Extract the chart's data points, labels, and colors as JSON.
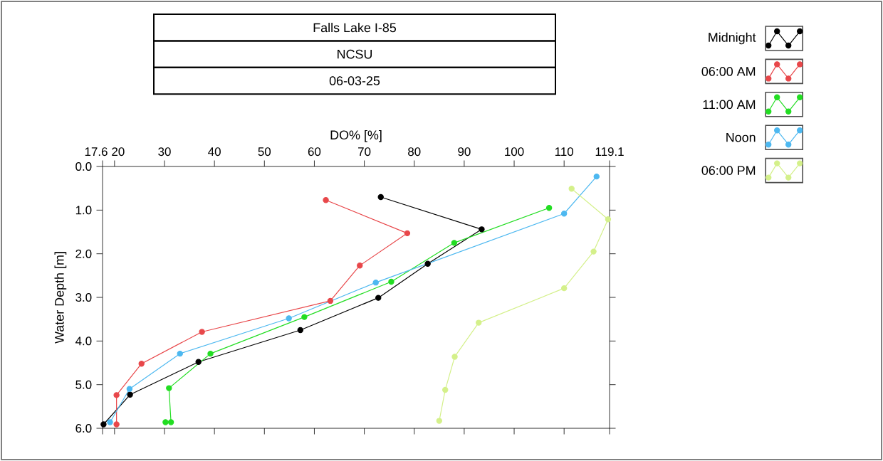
{
  "chart_data": {
    "type": "line",
    "title": "Falls Lake I-85",
    "subtitle": "NCSU",
    "annotations": [
      "06-03-25"
    ],
    "xlabel": "DO% [%]",
    "ylabel": "Water Depth [m]",
    "xlim": [
      17.6,
      119.1
    ],
    "ylim": [
      6.0,
      0.0
    ],
    "xticks": [
      17.6,
      20,
      30,
      40,
      50,
      60,
      70,
      80,
      90,
      100,
      110,
      119.1
    ],
    "yticks": [
      {
        "value": 0,
        "label": "0.0"
      },
      {
        "value": 1,
        "label": "1.0"
      },
      {
        "value": 2,
        "label": "2.0"
      },
      {
        "value": 3,
        "label": "3.0"
      },
      {
        "value": 4,
        "label": "4.0"
      },
      {
        "value": 5,
        "label": "5.0"
      },
      {
        "value": 6,
        "label": "6.0"
      }
    ],
    "marker": "circle",
    "legend": "right",
    "grid": false,
    "series": [
      {
        "name": "Midnight",
        "color": "#000000",
        "x": [
          73.3,
          93.5,
          82.7,
          72.8,
          57.2,
          36.8,
          23.1,
          17.8
        ],
        "values": [
          0.7,
          1.44,
          2.23,
          3.01,
          3.75,
          4.48,
          5.23,
          5.91
        ]
      },
      {
        "name": "06:00 AM",
        "color": "#e8474a",
        "x": [
          62.3,
          78.6,
          69.1,
          63.2,
          37.5,
          25.4,
          20.4,
          20.4
        ],
        "values": [
          0.77,
          1.53,
          2.27,
          3.08,
          3.79,
          4.52,
          5.24,
          5.91
        ]
      },
      {
        "name": "11:00 AM",
        "color": "#22dd22",
        "x": [
          107.0,
          88.0,
          75.4,
          58.0,
          39.2,
          30.9,
          31.3,
          30.2
        ],
        "values": [
          0.95,
          1.75,
          2.64,
          3.45,
          4.29,
          5.08,
          5.86,
          5.86
        ]
      },
      {
        "name": "Noon",
        "color": "#4db8f0",
        "x": [
          116.5,
          110.0,
          72.3,
          54.9,
          33.1,
          23.0,
          19.1
        ],
        "values": [
          0.23,
          1.08,
          2.66,
          3.48,
          4.29,
          5.1,
          5.86
        ]
      },
      {
        "name": "06:00 PM",
        "color": "#d4f08a",
        "x": [
          111.5,
          118.8,
          115.9,
          110.0,
          92.9,
          88.1,
          86.2,
          85.0
        ],
        "values": [
          0.51,
          1.21,
          1.95,
          2.79,
          3.58,
          4.36,
          5.12,
          5.83
        ]
      }
    ]
  }
}
